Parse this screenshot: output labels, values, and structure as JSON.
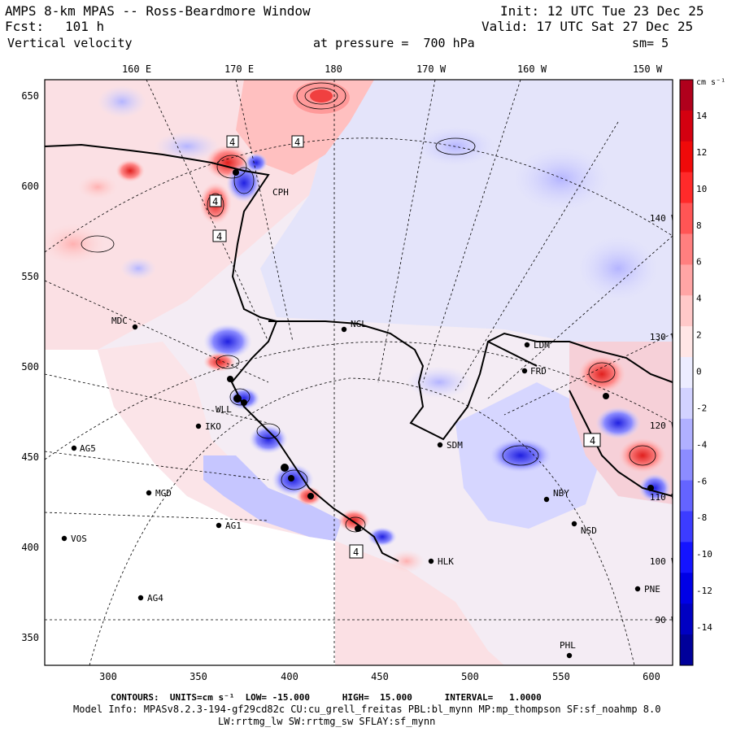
{
  "header": {
    "title": "AMPS 8-km MPAS -- Ross-Beardmore Window",
    "init": "Init: 12 UTC Tue 23 Dec 25",
    "fcst_label": "Fcst:",
    "fcst_value": "101 h",
    "valid": "Valid: 17 UTC Sat 27 Dec 25",
    "variable": "Vertical velocity",
    "pressure": "at pressure =  700 hPa",
    "smoothing": "sm= 5"
  },
  "map": {
    "top_lon_labels": [
      "160 E",
      "170 E",
      "180",
      "170 W",
      "160 W",
      "150 W"
    ],
    "x_ticks": [
      "300",
      "350",
      "400",
      "450",
      "500",
      "550",
      "600"
    ],
    "y_ticks": [
      "650",
      "600",
      "550",
      "500",
      "450",
      "400",
      "350"
    ],
    "right_lon_labels": [
      "140 W",
      "130 W",
      "120 W",
      "110 W",
      "100 W",
      "90 W"
    ],
    "box_labels": [
      "4",
      "4",
      "4",
      "4",
      "4",
      "4"
    ],
    "stations": [
      {
        "id": "MDC"
      },
      {
        "id": "NGL"
      },
      {
        "id": "LDM"
      },
      {
        "id": "FRD"
      },
      {
        "id": "IKO"
      },
      {
        "id": "AG5"
      },
      {
        "id": "SDM"
      },
      {
        "id": "MGD"
      },
      {
        "id": "NBY"
      },
      {
        "id": "AG1"
      },
      {
        "id": "NSD"
      },
      {
        "id": "VOS"
      },
      {
        "id": "HLK"
      },
      {
        "id": "AG4"
      },
      {
        "id": "PNE"
      },
      {
        "id": "PHL"
      },
      {
        "id": "CPH"
      },
      {
        "id": "WLL"
      }
    ]
  },
  "colorbar": {
    "unit": "cm s⁻¹",
    "labels": [
      "14",
      "12",
      "10",
      "8",
      "6",
      "4",
      "2",
      "0",
      "-2",
      "-4",
      "-6",
      "-8",
      "-10",
      "-12",
      "-14"
    ],
    "colors": [
      "#b0001c",
      "#d40010",
      "#f00a0a",
      "#ff2a2a",
      "#ff5555",
      "#ff7f7f",
      "#ffa5a5",
      "#ffc9c9",
      "#ffe6e6",
      "#ececff",
      "#d2d2ff",
      "#b0b0ff",
      "#8c8cff",
      "#6464ff",
      "#3c3cff",
      "#1414ff",
      "#0000e6",
      "#0000c2",
      "#00009a"
    ]
  },
  "footer": {
    "contours": "CONTOURS:  UNITS=cm s⁻¹  LOW= -15.000      HIGH=  15.000      INTERVAL=   1.0000",
    "model_info": "Model Info: MPASv8.2.3-194-gf29cd82c CU:cu_grell_freitas PBL:bl_mynn MP:mp_thompson SF:sf_noahmp 8.0",
    "physics": "LW:rrtmg_lw SW:rrtmg_sw SFLAY:sf_mynn"
  },
  "colors": {
    "positive_field": "#ffd9d9",
    "negative_field": "#dcdcff",
    "strong_red": "#e82020",
    "strong_blue": "#2424e0"
  }
}
